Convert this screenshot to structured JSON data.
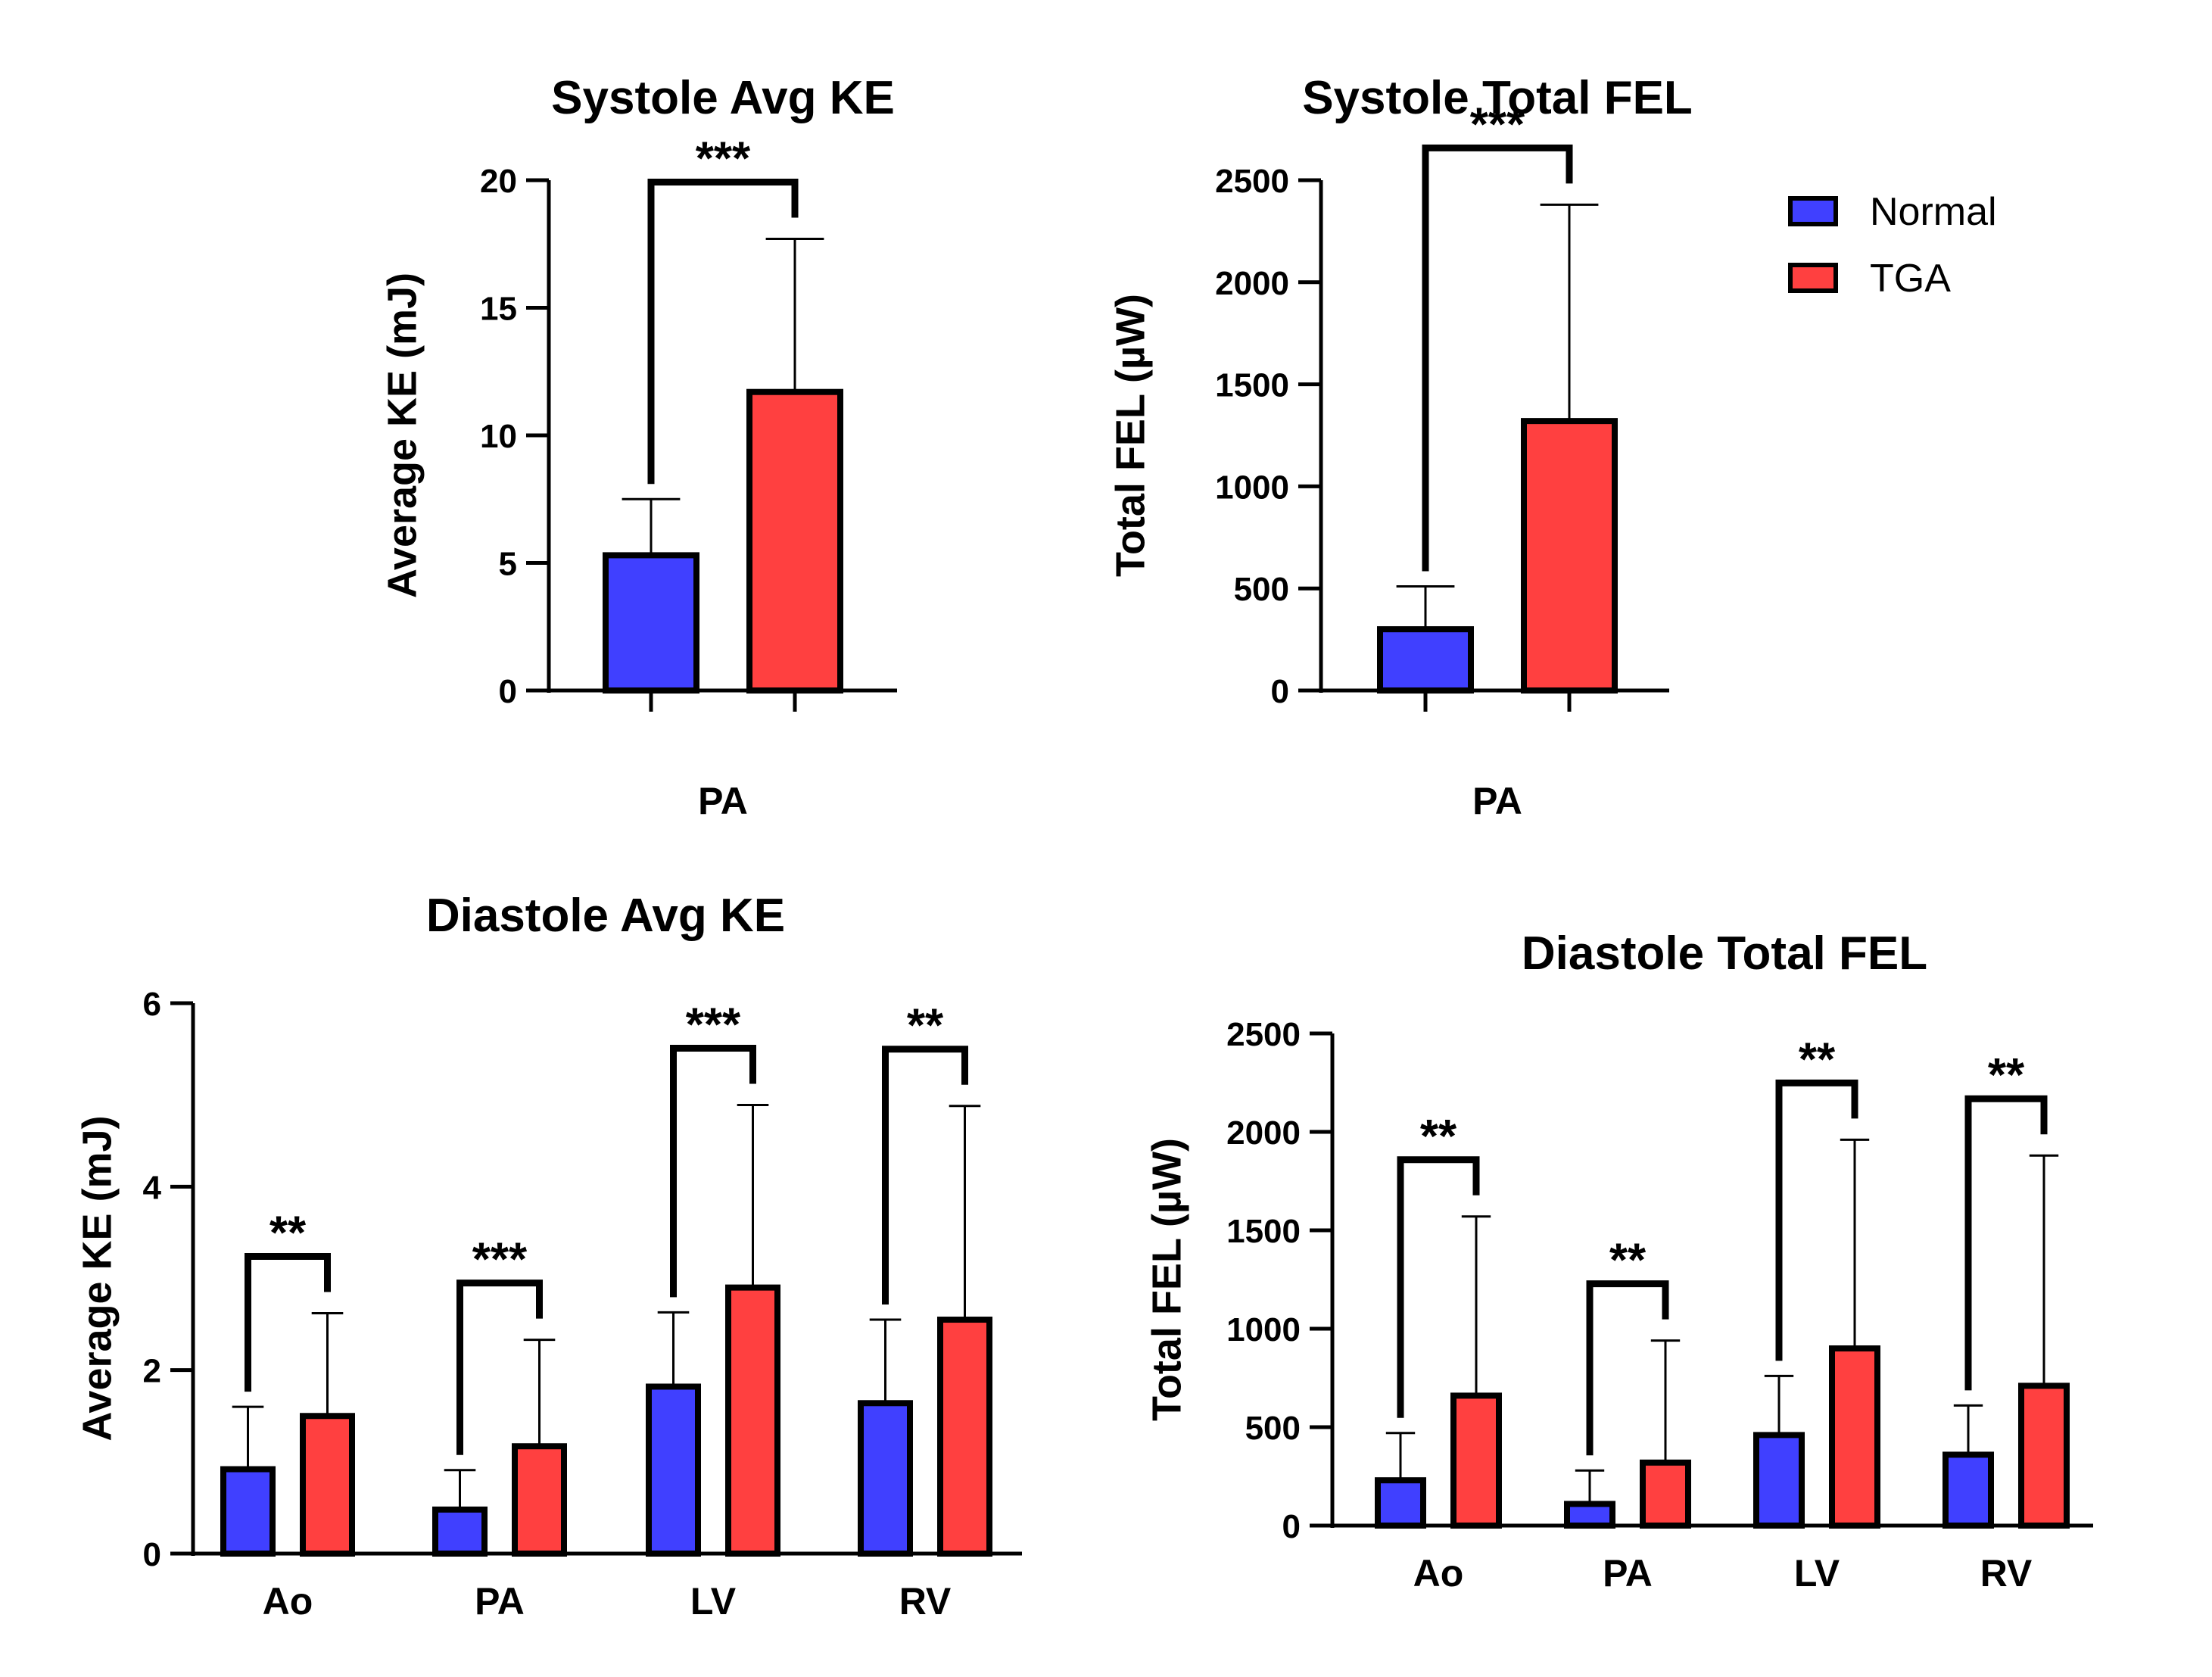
{
  "legend": {
    "items": [
      {
        "label": "Normal",
        "color": "#4040ff"
      },
      {
        "label": "TGA",
        "color": "#ff4040"
      }
    ]
  },
  "chart_data": [
    {
      "type": "bar",
      "title": "Systole Avg KE",
      "xlabel": "PA",
      "ylabel": "Average KE (mJ)",
      "ylim": [
        0,
        20
      ],
      "yticks": [
        0,
        5,
        10,
        15,
        20
      ],
      "categories": [
        ""
      ],
      "series": [
        {
          "name": "Normal",
          "color": "#4040ff",
          "values": [
            5.3
          ],
          "error": [
            2.2
          ]
        },
        {
          "name": "TGA",
          "color": "#ff4040",
          "values": [
            11.7
          ],
          "error": [
            6.0
          ]
        }
      ],
      "significance": [
        "***"
      ]
    },
    {
      "type": "bar",
      "title": "Systole Total FEL",
      "xlabel": "PA",
      "ylabel": "Total FEL (µW)",
      "ylim": [
        0,
        2500
      ],
      "yticks": [
        0,
        500,
        1000,
        1500,
        2000,
        2500
      ],
      "categories": [
        ""
      ],
      "series": [
        {
          "name": "Normal",
          "color": "#4040ff",
          "values": [
            300
          ],
          "error": [
            210
          ]
        },
        {
          "name": "TGA",
          "color": "#ff4040",
          "values": [
            1320
          ],
          "error": [
            1060
          ]
        }
      ],
      "significance": [
        "***"
      ]
    },
    {
      "type": "bar",
      "title": "Diastole Avg KE",
      "xlabel": "",
      "ylabel": "Average KE (mJ)",
      "ylim": [
        0,
        6
      ],
      "yticks": [
        0,
        2,
        4,
        6
      ],
      "categories": [
        "Ao",
        "PA",
        "LV",
        "RV"
      ],
      "series": [
        {
          "name": "Normal",
          "color": "#4040ff",
          "values": [
            0.92,
            0.48,
            1.82,
            1.64
          ],
          "error": [
            0.68,
            0.43,
            0.81,
            0.91
          ]
        },
        {
          "name": "TGA",
          "color": "#ff4040",
          "values": [
            1.5,
            1.17,
            2.9,
            2.55
          ],
          "error": [
            1.12,
            1.16,
            1.99,
            2.33
          ]
        }
      ],
      "significance": [
        "**",
        "***",
        "***",
        "**"
      ]
    },
    {
      "type": "bar",
      "title": "Diastole Total FEL",
      "xlabel": "",
      "ylabel": "Total FEL (µW)",
      "ylim": [
        0,
        2500
      ],
      "yticks": [
        0,
        500,
        1000,
        1500,
        2000,
        2500
      ],
      "categories": [
        "Ao",
        "PA",
        "LV",
        "RV"
      ],
      "series": [
        {
          "name": "Normal",
          "color": "#4040ff",
          "values": [
            230,
            110,
            460,
            360
          ],
          "error": [
            240,
            170,
            300,
            250
          ]
        },
        {
          "name": "TGA",
          "color": "#ff4040",
          "values": [
            660,
            320,
            900,
            710
          ],
          "error": [
            910,
            620,
            1060,
            1170
          ]
        }
      ],
      "significance": [
        "**",
        "**",
        "**",
        "**"
      ]
    }
  ]
}
